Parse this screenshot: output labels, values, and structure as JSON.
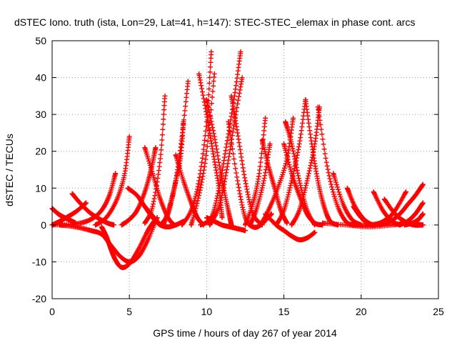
{
  "chart_data": {
    "type": "scatter",
    "title": "dSTEC Iono. truth (ista, Lon=29, Lat=41, h=147): STEC-STEC_elemax in phase cont. arcs",
    "xlabel": "GPS time / hours of day 267 of year 2014",
    "ylabel": "dSTEC  / TECUs",
    "xlim": [
      0,
      25
    ],
    "ylim": [
      -20,
      50
    ],
    "xticks": [
      0,
      5,
      10,
      15,
      20,
      25
    ],
    "yticks": [
      -20,
      -10,
      0,
      10,
      20,
      30,
      40,
      50
    ],
    "xtick_labels": [
      "0",
      "5",
      "10",
      "15",
      "20",
      "25"
    ],
    "ytick_labels": [
      "-20",
      "-10",
      "0",
      "10",
      "20",
      "30",
      "40",
      "50"
    ],
    "grid": true,
    "legend": "none",
    "marker": "+",
    "color": "#ff0000",
    "series": [
      {
        "x": [
          0.0,
          0.4,
          0.8,
          1.2,
          1.5
        ],
        "y": [
          4.5,
          3.0,
          2.0,
          1.2,
          0.6
        ]
      },
      {
        "x": [
          0.0,
          0.5,
          1.0,
          1.6,
          2.2
        ],
        "y": [
          0.0,
          1.0,
          2.2,
          3.8,
          6.0
        ]
      },
      {
        "x": [
          1.3,
          1.8,
          2.4,
          3.0,
          3.6,
          4.0
        ],
        "y": [
          8.5,
          6.0,
          3.5,
          1.8,
          0.5,
          0.0
        ]
      },
      {
        "x": [
          0.5,
          1.5,
          2.5,
          3.2,
          3.8,
          4.4,
          5.0,
          5.6,
          6.2,
          6.8
        ],
        "y": [
          0.0,
          -0.5,
          -1.5,
          -2.5,
          -5.5,
          -8.5,
          -10.0,
          -8.5,
          -4.0,
          2.0
        ]
      },
      {
        "x": [
          3.2,
          3.5,
          3.8,
          4.1,
          4.5,
          5.0,
          5.6,
          6.2,
          6.6
        ],
        "y": [
          -0.5,
          -3.0,
          -6.5,
          -9.5,
          -11.5,
          -10.5,
          -6.5,
          -1.5,
          1.0
        ]
      },
      {
        "x": [
          0.0,
          1.5,
          2.5,
          3.2,
          3.7,
          4.1
        ],
        "y": [
          0.0,
          0.3,
          1.5,
          4.0,
          8.0,
          14.0
        ]
      },
      {
        "x": [
          2.8,
          3.5,
          4.2,
          4.7,
          5.0
        ],
        "y": [
          0.0,
          2.0,
          7.0,
          14.0,
          24.0
        ]
      },
      {
        "x": [
          4.5,
          5.0,
          5.5,
          6.0,
          6.4,
          6.7
        ],
        "y": [
          0.0,
          1.5,
          4.0,
          9.0,
          15.0,
          21.0
        ]
      },
      {
        "x": [
          4.9,
          5.5,
          6.0,
          6.6,
          7.0
        ],
        "y": [
          10.0,
          8.0,
          5.0,
          2.0,
          0.0
        ]
      },
      {
        "x": [
          6.0,
          6.5,
          7.0,
          7.5,
          7.9
        ],
        "y": [
          21.0,
          14.0,
          7.0,
          2.0,
          0.0
        ]
      },
      {
        "x": [
          6.0,
          6.5,
          7.0,
          7.5,
          8.0,
          8.5
        ],
        "y": [
          5.0,
          2.0,
          0.0,
          -0.5,
          0.0,
          1.0
        ]
      },
      {
        "x": [
          6.0,
          6.5,
          7.0,
          7.3
        ],
        "y": [
          0.5,
          5.0,
          18.0,
          35.0
        ]
      },
      {
        "x": [
          7.0,
          7.5,
          7.9,
          8.3,
          8.5
        ],
        "y": [
          0.0,
          3.0,
          10.0,
          18.0,
          28.0
        ]
      },
      {
        "x": [
          7.2,
          7.6,
          8.0,
          8.4,
          8.8
        ],
        "y": [
          0.0,
          5.0,
          12.0,
          24.0,
          39.0
        ]
      },
      {
        "x": [
          8.0,
          8.5,
          9.0,
          9.4,
          9.8
        ],
        "y": [
          19.0,
          12.0,
          6.0,
          2.0,
          0.0
        ]
      },
      {
        "x": [
          8.4,
          9.0,
          9.5,
          10.0,
          10.3
        ],
        "y": [
          0.0,
          4.0,
          12.0,
          28.0,
          47.0
        ]
      },
      {
        "x": [
          9.0,
          9.5,
          10.0,
          10.5
        ],
        "y": [
          0.0,
          8.0,
          20.0,
          41.0
        ]
      },
      {
        "x": [
          9.5,
          10.0,
          10.4,
          10.8,
          11.0
        ],
        "y": [
          41.0,
          30.0,
          20.0,
          10.0,
          2.0
        ]
      },
      {
        "x": [
          10.0,
          10.5,
          11.0,
          11.4,
          11.6
        ],
        "y": [
          34.0,
          24.0,
          12.0,
          4.0,
          0.0
        ]
      },
      {
        "x": [
          9.6,
          10.3,
          10.8,
          11.3,
          11.8,
          12.2
        ],
        "y": [
          0.0,
          2.0,
          10.0,
          22.0,
          35.0,
          47.0
        ]
      },
      {
        "x": [
          10.2,
          10.8,
          11.3,
          11.8,
          12.3
        ],
        "y": [
          0.0,
          5.0,
          15.0,
          28.0,
          40.0
        ]
      },
      {
        "x": [
          11.6,
          12.0,
          12.5,
          13.0,
          13.6
        ],
        "y": [
          35.0,
          25.0,
          12.0,
          3.0,
          0.0
        ]
      },
      {
        "x": [
          10.0,
          10.5,
          11.0,
          11.5,
          12.0,
          12.5
        ],
        "y": [
          2.0,
          1.0,
          0.0,
          -0.5,
          -1.0,
          -1.5
        ]
      },
      {
        "x": [
          11.4,
          12.0,
          12.5,
          13.0,
          13.5,
          14.2
        ],
        "y": [
          28.0,
          12.0,
          2.0,
          -0.5,
          0.0,
          3.0
        ]
      },
      {
        "x": [
          12.5,
          13.0,
          13.4,
          13.8
        ],
        "y": [
          0.0,
          6.0,
          14.0,
          29.0
        ]
      },
      {
        "x": [
          12.8,
          13.2,
          13.7,
          14.1
        ],
        "y": [
          0.0,
          4.0,
          12.0,
          22.0
        ]
      },
      {
        "x": [
          13.6,
          14.0,
          14.4,
          14.8,
          15.2
        ],
        "y": [
          23.0,
          16.0,
          10.0,
          4.0,
          0.5
        ]
      },
      {
        "x": [
          13.8,
          14.5,
          15.0,
          15.5,
          16.0,
          16.5,
          17.0
        ],
        "y": [
          3.0,
          0.0,
          -1.5,
          -3.0,
          -4.0,
          -3.5,
          -2.0
        ]
      },
      {
        "x": [
          13.5,
          14.0,
          14.6,
          15.2,
          15.6
        ],
        "y": [
          0.0,
          4.0,
          10.0,
          18.0,
          29.0
        ]
      },
      {
        "x": [
          15.1,
          15.5,
          16.0,
          16.5,
          17.0
        ],
        "y": [
          28.0,
          22.0,
          12.0,
          4.0,
          0.0
        ]
      },
      {
        "x": [
          15.0,
          15.5,
          16.0,
          16.5,
          17.0,
          17.5
        ],
        "y": [
          22.0,
          14.0,
          8.0,
          3.0,
          0.5,
          0.0
        ]
      },
      {
        "x": [
          14.5,
          15.0,
          15.5,
          16.0,
          16.4
        ],
        "y": [
          0.0,
          4.0,
          12.0,
          22.0,
          34.0
        ]
      },
      {
        "x": [
          16.4,
          16.8,
          17.2,
          17.6,
          18.0,
          18.5
        ],
        "y": [
          34.0,
          22.0,
          12.0,
          5.0,
          1.0,
          0.0
        ]
      },
      {
        "x": [
          15.5,
          16.0,
          16.5,
          17.0,
          17.3
        ],
        "y": [
          0.0,
          4.0,
          12.0,
          22.0,
          32.0
        ]
      },
      {
        "x": [
          17.2,
          17.8,
          18.4,
          19.0,
          19.5
        ],
        "y": [
          32.0,
          16.0,
          6.0,
          1.0,
          0.0
        ]
      },
      {
        "x": [
          18.2,
          18.8,
          19.4,
          20.0
        ],
        "y": [
          14.0,
          6.0,
          1.5,
          0.0
        ]
      },
      {
        "x": [
          19.1,
          19.6,
          20.2,
          20.8,
          21.3
        ],
        "y": [
          10.0,
          5.0,
          1.5,
          0.0,
          0.5
        ]
      },
      {
        "x": [
          19.5,
          20.0,
          20.6,
          21.2,
          21.8
        ],
        "y": [
          5.0,
          2.0,
          0.0,
          0.5,
          2.0
        ]
      },
      {
        "x": [
          20.8,
          21.4,
          22.0,
          22.5
        ],
        "y": [
          9.0,
          4.0,
          1.0,
          0.0
        ]
      },
      {
        "x": [
          19.5,
          20.5,
          21.5,
          22.2,
          22.9
        ],
        "y": [
          0.0,
          0.0,
          1.0,
          4.0,
          9.0
        ]
      },
      {
        "x": [
          21.5,
          22.2,
          22.8,
          23.4,
          24.0
        ],
        "y": [
          7.0,
          3.0,
          1.0,
          0.0,
          0.0
        ]
      },
      {
        "x": [
          21.2,
          21.9,
          22.5,
          23.0,
          23.5,
          24.0
        ],
        "y": [
          0.0,
          1.0,
          3.0,
          5.5,
          8.0,
          11.0
        ]
      },
      {
        "x": [
          22.5,
          23.0,
          23.5,
          24.0
        ],
        "y": [
          0.0,
          1.0,
          3.0,
          6.0
        ]
      },
      {
        "x": [
          17.5,
          19.0,
          20.5,
          22.0,
          23.0,
          24.0
        ],
        "y": [
          0.5,
          0.0,
          -0.5,
          0.0,
          0.5,
          0.0
        ]
      },
      {
        "x": [
          22.8,
          23.3,
          23.7,
          24.0
        ],
        "y": [
          0.0,
          0.5,
          1.5,
          3.0
        ]
      }
    ]
  }
}
